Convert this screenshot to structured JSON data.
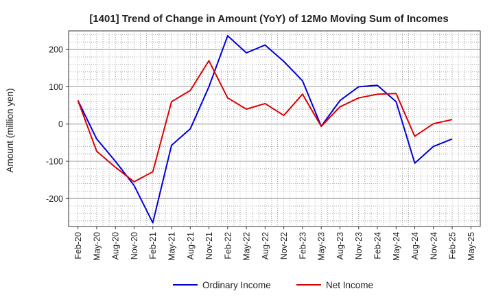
{
  "chart_data": {
    "type": "line",
    "title": "[1401]  Trend of Change in Amount (YoY) of 12Mo Moving Sum of Incomes",
    "xlabel": "",
    "ylabel": "Amount (million yen)",
    "x_ticks": [
      "Feb-20",
      "May-20",
      "Aug-20",
      "Nov-20",
      "Feb-21",
      "May-21",
      "Aug-21",
      "Nov-21",
      "Feb-22",
      "May-22",
      "Aug-22",
      "Nov-22",
      "Feb-23",
      "May-23",
      "Aug-23",
      "Nov-23",
      "Feb-24",
      "May-24",
      "Aug-24",
      "Nov-24",
      "Feb-25",
      "May-25"
    ],
    "y_ticks": [
      "200",
      "100",
      "0",
      "-100",
      "-200"
    ],
    "ylim": [
      -275,
      250
    ],
    "grid": true,
    "legend_position": "bottom",
    "series": [
      {
        "name": "Ordinary Income",
        "color": "#0000dd",
        "x": [
          "Feb-20",
          "May-20",
          "Aug-20",
          "Nov-20",
          "Feb-21",
          "May-21",
          "Aug-21",
          "Nov-21",
          "Feb-22",
          "May-22",
          "Aug-22",
          "Nov-22",
          "Feb-23",
          "May-23",
          "Aug-23",
          "Nov-23",
          "Feb-24",
          "May-24",
          "Aug-24",
          "Nov-24",
          "Feb-25"
        ],
        "values": [
          63,
          -40,
          -100,
          -165,
          -265,
          -57,
          -13,
          100,
          237,
          191,
          212,
          168,
          116,
          -6,
          63,
          100,
          104,
          60,
          -105,
          -60,
          -40
        ]
      },
      {
        "name": "Net Income",
        "color": "#dd0000",
        "x": [
          "Feb-20",
          "May-20",
          "Aug-20",
          "Nov-20",
          "Feb-21",
          "May-21",
          "Aug-21",
          "Nov-21",
          "Feb-22",
          "May-22",
          "Aug-22",
          "Nov-22",
          "Feb-23",
          "May-23",
          "Aug-23",
          "Nov-23",
          "Feb-24",
          "May-24",
          "Aug-24",
          "Nov-24",
          "Feb-25"
        ],
        "values": [
          63,
          -73,
          -116,
          -155,
          -128,
          60,
          90,
          170,
          70,
          40,
          55,
          23,
          80,
          -6,
          46,
          70,
          80,
          82,
          -33,
          1,
          12
        ]
      }
    ]
  }
}
